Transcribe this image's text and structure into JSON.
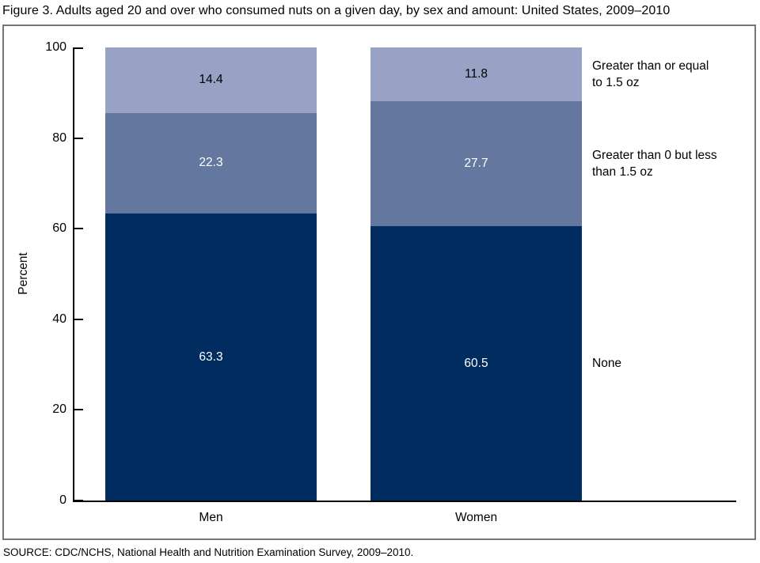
{
  "title": "Figure 3. Adults aged 20 and over who consumed nuts on a given day, by sex and amount: United States, 2009–2010",
  "source": "SOURCE: CDC/NCHS, National Health and Nutrition Examination Survey, 2009–2010.",
  "chart_data": {
    "type": "bar",
    "stacked": true,
    "title": "Figure 3. Adults aged 20 and over who consumed nuts on a given day, by sex and amount: United States, 2009–2010",
    "categories": [
      "Men",
      "Women"
    ],
    "series": [
      {
        "name": "None",
        "legend_lines": [
          "None"
        ],
        "values": [
          63.3,
          60.5
        ],
        "color": "#002c5f",
        "label_color": "#ffffff"
      },
      {
        "name": "Greater than 0 but less than 1.5 oz",
        "legend_lines": [
          "Greater than 0 but less",
          "than 1.5 oz"
        ],
        "values": [
          22.3,
          27.7
        ],
        "color": "#64779e",
        "label_color": "#ffffff"
      },
      {
        "name": "Greater than or equal to 1.5 oz",
        "legend_lines": [
          "Greater than or equal",
          "to 1.5 oz"
        ],
        "values": [
          14.4,
          11.8
        ],
        "color": "#98a2c4",
        "label_color": "#000000"
      }
    ],
    "xlabel": "",
    "ylabel": "Percent",
    "yticks": [
      0,
      20,
      40,
      60,
      80,
      100
    ],
    "ylim": [
      0,
      100
    ],
    "grid": false,
    "legend_position": "right",
    "axis_color": "#000000",
    "frame_color": "#757575"
  }
}
